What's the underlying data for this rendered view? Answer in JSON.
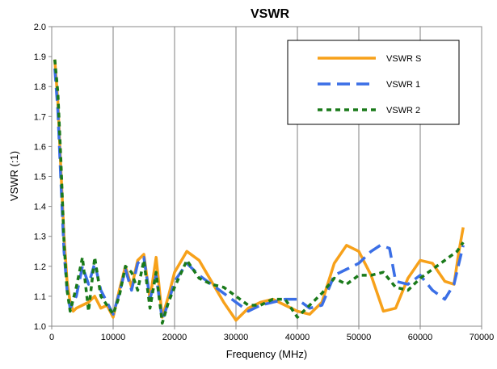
{
  "chart_data": {
    "type": "line",
    "title": "VSWR",
    "xlabel": "Frequency (MHz)",
    "ylabel": "VSWR (:1)",
    "xlim": [
      0,
      70000
    ],
    "ylim": [
      1.0,
      2.0
    ],
    "x_ticks": [
      "0",
      "10000",
      "20000",
      "30000",
      "40000",
      "50000",
      "60000",
      "70000"
    ],
    "y_ticks": [
      "1.0",
      "1.1",
      "1.2",
      "1.3",
      "1.4",
      "1.5",
      "1.6",
      "1.7",
      "1.8",
      "1.9",
      "2.0"
    ],
    "grid": "vertical",
    "legend_position": "top-right",
    "series": [
      {
        "name": "VSWR S",
        "color": "#f7a11a",
        "dash": "solid",
        "x": [
          500,
          1000,
          1500,
          2000,
          2500,
          3000,
          3500,
          4000,
          5000,
          6000,
          7000,
          8000,
          9000,
          10000,
          11000,
          12000,
          13000,
          14000,
          15000,
          16000,
          17000,
          18000,
          19000,
          20000,
          22000,
          24000,
          26000,
          28000,
          30000,
          32000,
          34000,
          36000,
          38000,
          40000,
          42000,
          44000,
          46000,
          48000,
          50000,
          52000,
          54000,
          56000,
          58000,
          60000,
          62000,
          64000,
          65500,
          66300,
          67000
        ],
        "y": [
          1.89,
          1.75,
          1.52,
          1.3,
          1.15,
          1.08,
          1.05,
          1.06,
          1.07,
          1.08,
          1.1,
          1.06,
          1.07,
          1.03,
          1.12,
          1.2,
          1.13,
          1.22,
          1.24,
          1.09,
          1.23,
          1.03,
          1.1,
          1.18,
          1.25,
          1.22,
          1.15,
          1.08,
          1.02,
          1.06,
          1.08,
          1.09,
          1.07,
          1.05,
          1.04,
          1.08,
          1.21,
          1.27,
          1.25,
          1.17,
          1.05,
          1.06,
          1.16,
          1.22,
          1.21,
          1.15,
          1.14,
          1.25,
          1.33
        ]
      },
      {
        "name": "VSWR 1",
        "color": "#3b6fe6",
        "dash": "long",
        "x": [
          500,
          1000,
          1500,
          2000,
          2500,
          3000,
          4000,
          5000,
          6000,
          7000,
          8000,
          9000,
          10000,
          11000,
          12000,
          13000,
          14000,
          15000,
          16000,
          17000,
          18000,
          19000,
          20000,
          22000,
          24000,
          26000,
          28000,
          30000,
          32000,
          34000,
          36000,
          38000,
          40000,
          42000,
          44000,
          46000,
          48000,
          50000,
          52000,
          53500,
          55000,
          56000,
          58000,
          60000,
          62000,
          64000,
          65500,
          66300,
          67000
        ],
        "y": [
          1.86,
          1.72,
          1.48,
          1.25,
          1.12,
          1.06,
          1.1,
          1.2,
          1.14,
          1.21,
          1.12,
          1.08,
          1.04,
          1.11,
          1.19,
          1.12,
          1.21,
          1.23,
          1.09,
          1.17,
          1.02,
          1.08,
          1.15,
          1.21,
          1.17,
          1.14,
          1.11,
          1.08,
          1.05,
          1.07,
          1.08,
          1.09,
          1.09,
          1.06,
          1.07,
          1.17,
          1.19,
          1.21,
          1.25,
          1.27,
          1.26,
          1.15,
          1.14,
          1.17,
          1.12,
          1.09,
          1.14,
          1.21,
          1.27
        ]
      },
      {
        "name": "VSWR 2",
        "color": "#1a7a1a",
        "dash": "short",
        "x": [
          500,
          1000,
          1500,
          2000,
          2500,
          3000,
          4000,
          5000,
          6000,
          7000,
          8000,
          9000,
          10000,
          11000,
          12000,
          13000,
          14000,
          15000,
          16000,
          17000,
          18000,
          19000,
          20000,
          22000,
          24000,
          26000,
          28000,
          30000,
          32000,
          34000,
          36000,
          38000,
          40000,
          42000,
          44000,
          46000,
          48000,
          50000,
          52000,
          54000,
          56000,
          58000,
          60000,
          62000,
          64000,
          66000,
          67000
        ],
        "y": [
          1.89,
          1.78,
          1.55,
          1.28,
          1.12,
          1.05,
          1.13,
          1.23,
          1.05,
          1.23,
          1.1,
          1.07,
          1.04,
          1.1,
          1.2,
          1.18,
          1.12,
          1.22,
          1.06,
          1.18,
          1.01,
          1.08,
          1.13,
          1.22,
          1.16,
          1.14,
          1.13,
          1.1,
          1.07,
          1.07,
          1.09,
          1.09,
          1.03,
          1.07,
          1.11,
          1.16,
          1.14,
          1.17,
          1.17,
          1.18,
          1.13,
          1.12,
          1.16,
          1.19,
          1.22,
          1.25,
          1.28
        ]
      }
    ]
  }
}
